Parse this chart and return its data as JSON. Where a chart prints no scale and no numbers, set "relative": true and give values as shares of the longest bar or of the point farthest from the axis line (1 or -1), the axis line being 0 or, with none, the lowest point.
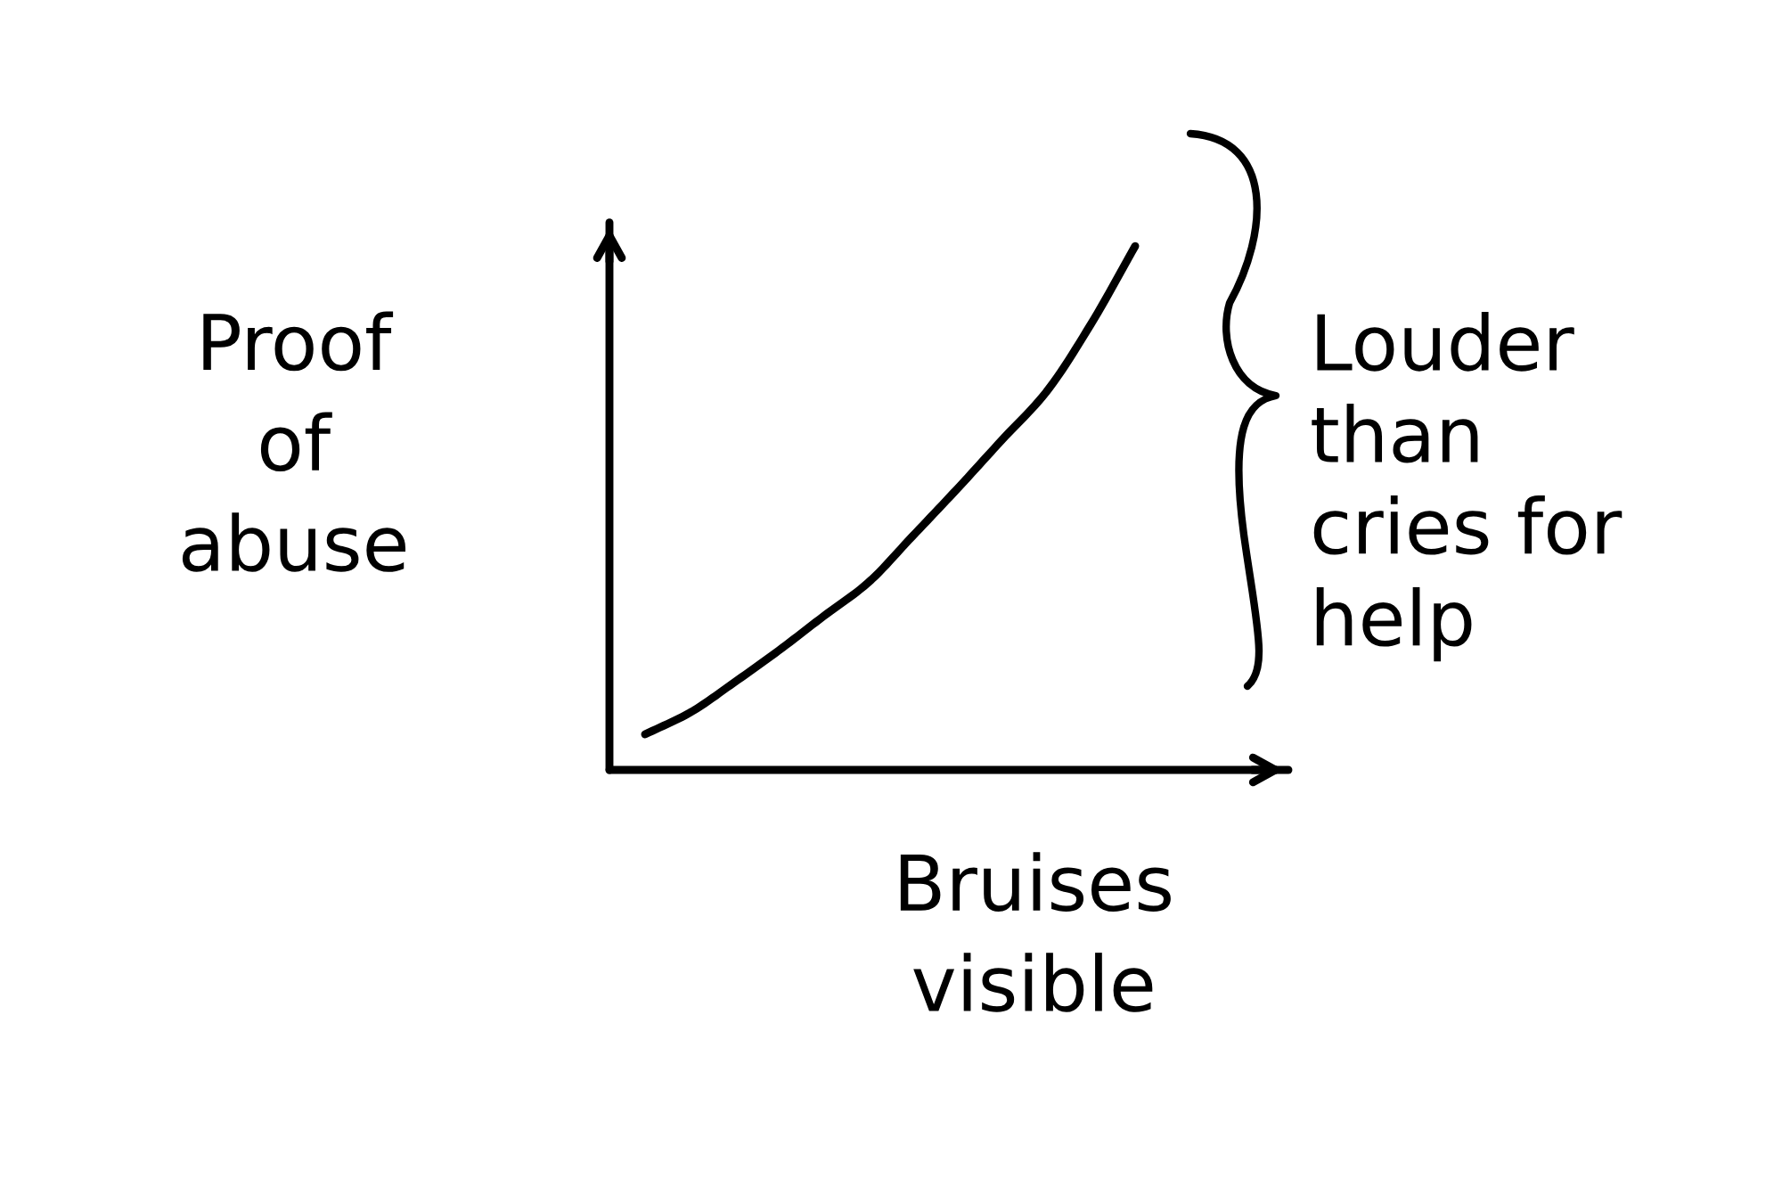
{
  "chart_data": {
    "type": "line",
    "relative": true,
    "xlabel": "Bruises\nvisible",
    "ylabel": "Proof\nof\nabuse",
    "annotations": [
      "Louder\nthan\ncries for\nhelp"
    ],
    "categories": [
      null,
      null,
      null,
      null,
      null,
      null,
      null,
      null,
      null,
      null,
      null,
      null
    ],
    "series": [
      {
        "color": "#000000",
        "values": [
          0.068,
          0.109,
          0.167,
          0.228,
          0.293,
          0.357,
          0.446,
          0.536,
          0.629,
          0.721,
          0.85,
          1.0
        ]
      }
    ]
  }
}
